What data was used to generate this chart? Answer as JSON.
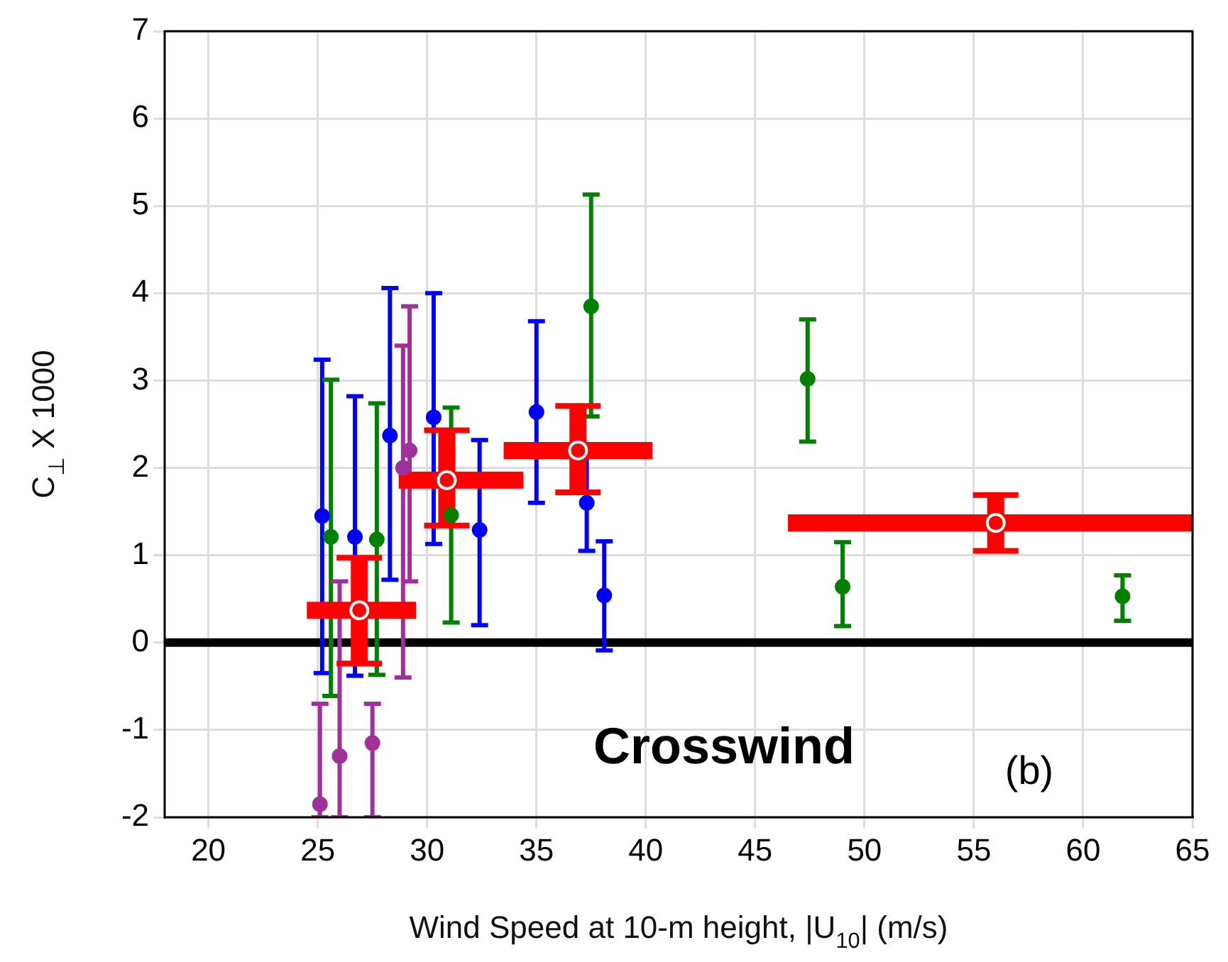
{
  "chart_data": {
    "type": "scatter",
    "xlabel": "Wind Speed at 10-m height, |U$_{10}$| (m/s)",
    "ylabel": "C$_{⊥}$ X 1000",
    "xlim": [
      18,
      65
    ],
    "xticks": [
      20,
      25,
      30,
      35,
      40,
      45,
      50,
      55,
      60,
      65
    ],
    "ylim": [
      -2,
      7
    ],
    "yticks": [
      -2,
      -1,
      0,
      1,
      2,
      3,
      4,
      5,
      6,
      7
    ],
    "grid": true,
    "legend": false,
    "marker": "circle",
    "ref_lines": [
      {
        "axis": "y",
        "value": 0,
        "color": "#000000"
      }
    ],
    "annotations": [
      "Crosswind",
      "(b)"
    ],
    "series": [
      {
        "color": "#0000ff",
        "x": [
          25.2,
          26.7,
          28.3,
          30.3,
          32.4,
          35.0,
          37.3,
          38.1
        ],
        "values": [
          1.45,
          1.21,
          2.37,
          2.58,
          1.29,
          2.64,
          1.6,
          0.54
        ],
        "errors": [
          [
            -0.35,
            3.24
          ],
          [
            -0.38,
            2.82
          ],
          [
            0.72,
            4.06
          ],
          [
            1.13,
            4.0
          ],
          [
            0.2,
            2.32
          ],
          [
            1.6,
            3.68
          ],
          [
            1.05,
            2.15
          ],
          [
            -0.09,
            1.16
          ]
        ]
      },
      {
        "color": "#008000",
        "x": [
          25.6,
          27.7,
          31.1,
          37.5,
          47.4,
          49.0,
          61.8
        ],
        "values": [
          1.21,
          1.18,
          1.46,
          3.85,
          3.02,
          0.64,
          0.53
        ],
        "errors": [
          [
            -0.61,
            3.01
          ],
          [
            -0.37,
            2.74
          ],
          [
            0.23,
            2.69
          ],
          [
            2.59,
            5.13
          ],
          [
            2.3,
            3.7
          ],
          [
            0.19,
            1.15
          ],
          [
            0.25,
            0.77
          ]
        ]
      },
      {
        "color": "#a0309a",
        "x": [
          25.1,
          26.0,
          27.5,
          28.9,
          29.2
        ],
        "values": [
          -1.85,
          -1.3,
          -1.15,
          2.0,
          2.2
        ],
        "errors": [
          [
            -2,
            -0.7
          ],
          [
            -2,
            0.7
          ],
          [
            -2,
            -0.7
          ],
          [
            -0.4,
            3.4
          ],
          [
            0.7,
            3.85
          ]
        ]
      },
      {
        "color": "#ff0000",
        "x": [
          26.9,
          30.9,
          36.9,
          56.0
        ],
        "values": [
          0.37,
          1.86,
          2.2,
          1.37
        ],
        "errors": [
          [
            -0.24,
            0.97
          ],
          [
            1.34,
            2.43
          ],
          [
            1.72,
            2.71
          ],
          [
            1.05,
            1.69
          ]
        ],
        "xerrors": [
          [
            24.5,
            29.5
          ],
          [
            28.7,
            34.4
          ],
          [
            33.5,
            40.3
          ],
          [
            46.5,
            65
          ]
        ]
      }
    ]
  }
}
